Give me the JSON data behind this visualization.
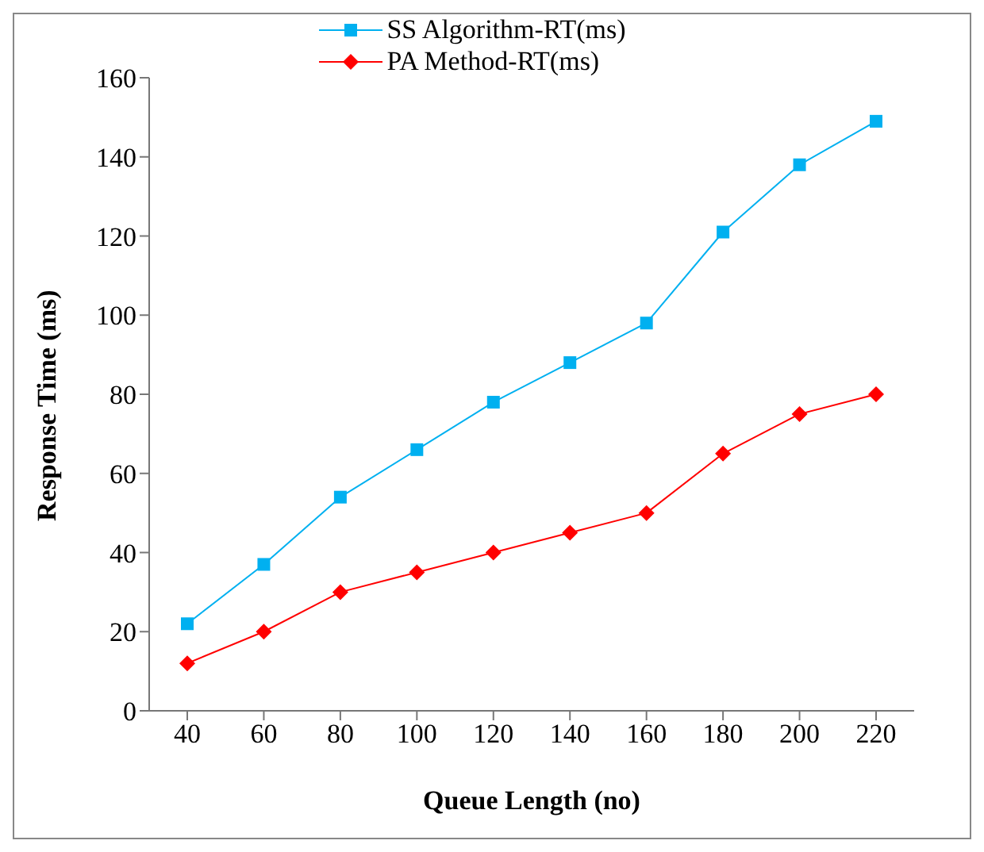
{
  "chart_data": {
    "type": "line",
    "xlabel": "Queue Length (no)",
    "ylabel": "Response Time (ms)",
    "categories": [
      "40",
      "60",
      "80",
      "100",
      "120",
      "140",
      "160",
      "180",
      "200",
      "220"
    ],
    "series": [
      {
        "name": "SS Algorithm-RT(ms)",
        "color": "#00b0f0",
        "marker": "square",
        "values": [
          22,
          37,
          54,
          66,
          78,
          88,
          98,
          121,
          138,
          149
        ]
      },
      {
        "name": "PA Method-RT(ms)",
        "color": "#ff0000",
        "marker": "diamond",
        "values": [
          12,
          20,
          30,
          35,
          40,
          45,
          50,
          65,
          75,
          80
        ]
      }
    ],
    "ylim": [
      0,
      160
    ],
    "yticks": [
      0,
      20,
      40,
      60,
      80,
      100,
      120,
      140,
      160
    ],
    "grid": false,
    "legend": "top"
  }
}
